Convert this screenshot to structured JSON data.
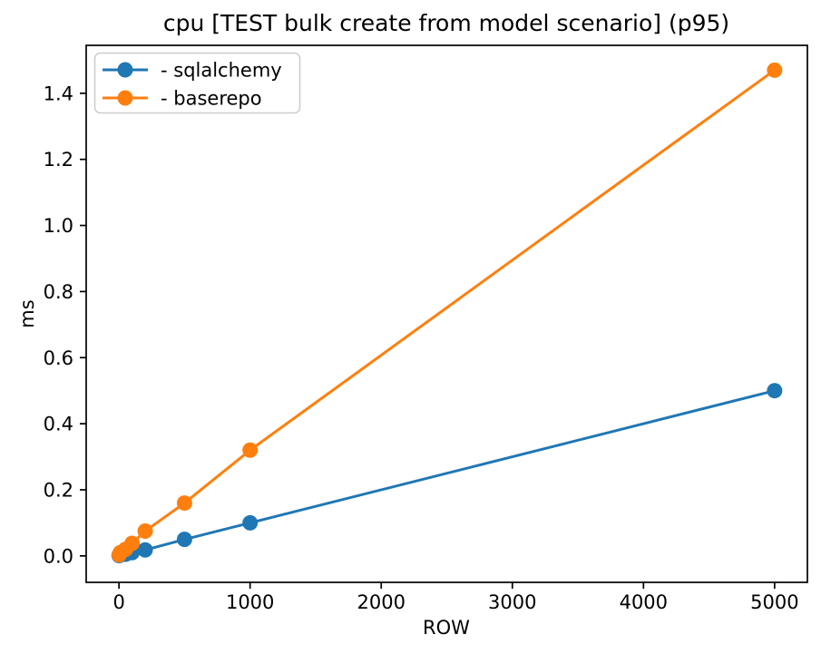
{
  "figure": {
    "background": "#ffffff",
    "text_color": "#000000",
    "spine_color": "#000000"
  },
  "chart_data": {
    "type": "line",
    "title": "cpu [TEST bulk create from model scenario] (p95)",
    "xlabel": "ROW",
    "ylabel": "ms",
    "x": [
      1,
      10,
      50,
      100,
      200,
      500,
      1000,
      5000
    ],
    "series": [
      {
        "name": "- sqlalchemy",
        "color": "#1f77b4",
        "marker": "circle",
        "values": [
          0.001,
          0.003,
          0.005,
          0.01,
          0.018,
          0.05,
          0.1,
          0.5
        ]
      },
      {
        "name": "- baserepo",
        "color": "#ff7f0e",
        "marker": "circle",
        "values": [
          0.003,
          0.01,
          0.02,
          0.038,
          0.075,
          0.16,
          0.32,
          1.47
        ]
      }
    ],
    "xlim": [
      -250,
      5250
    ],
    "ylim": [
      -0.08,
      1.545
    ],
    "xticks": [
      0,
      1000,
      2000,
      3000,
      4000,
      5000
    ],
    "xtick_labels": [
      "0",
      "1000",
      "2000",
      "3000",
      "4000",
      "5000"
    ],
    "yticks": [
      0.0,
      0.2,
      0.4,
      0.6,
      0.8,
      1.0,
      1.2,
      1.4
    ],
    "ytick_labels": [
      "0.0",
      "0.2",
      "0.4",
      "0.6",
      "0.8",
      "1.0",
      "1.2",
      "1.4"
    ],
    "grid": false,
    "legend": {
      "position": "upper-left",
      "entries": [
        "- sqlalchemy",
        "- baserepo"
      ]
    }
  }
}
